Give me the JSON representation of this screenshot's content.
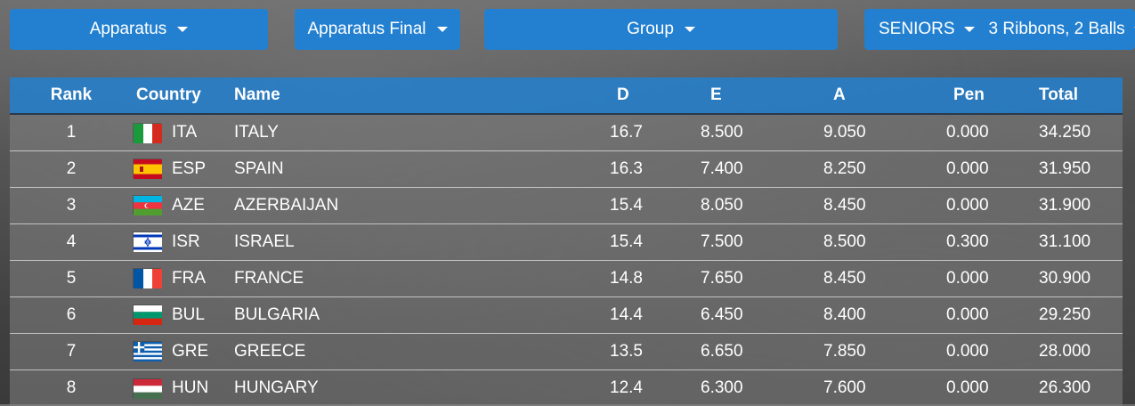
{
  "filters": {
    "apparatus": "Apparatus",
    "apparatus_final": "Apparatus Final",
    "group": "Group",
    "seniors": "SENIORS",
    "ribbons_balls": "3 Ribbons, 2 Balls"
  },
  "table": {
    "headers": {
      "rank": "Rank",
      "country": "Country",
      "name": "Name",
      "d": "D",
      "e": "E",
      "a": "A",
      "pen": "Pen",
      "total": "Total"
    },
    "rows": [
      {
        "rank": "1",
        "code": "ITA",
        "name": "ITALY",
        "d": "16.7",
        "e": "8.500",
        "a": "9.050",
        "pen": "0.000",
        "total": "34.250",
        "flag": "ita-flag-icon"
      },
      {
        "rank": "2",
        "code": "ESP",
        "name": "SPAIN",
        "d": "16.3",
        "e": "7.400",
        "a": "8.250",
        "pen": "0.000",
        "total": "31.950",
        "flag": "esp-flag-icon"
      },
      {
        "rank": "3",
        "code": "AZE",
        "name": "AZERBAIJAN",
        "d": "15.4",
        "e": "8.050",
        "a": "8.450",
        "pen": "0.000",
        "total": "31.900",
        "flag": "aze-flag-icon"
      },
      {
        "rank": "4",
        "code": "ISR",
        "name": "ISRAEL",
        "d": "15.4",
        "e": "7.500",
        "a": "8.500",
        "pen": "0.300",
        "total": "31.100",
        "flag": "isr-flag-icon"
      },
      {
        "rank": "5",
        "code": "FRA",
        "name": "FRANCE",
        "d": "14.8",
        "e": "7.650",
        "a": "8.450",
        "pen": "0.000",
        "total": "30.900",
        "flag": "fra-flag-icon"
      },
      {
        "rank": "6",
        "code": "BUL",
        "name": "BULGARIA",
        "d": "14.4",
        "e": "6.450",
        "a": "8.400",
        "pen": "0.000",
        "total": "29.250",
        "flag": "bul-flag-icon"
      },
      {
        "rank": "7",
        "code": "GRE",
        "name": "GREECE",
        "d": "13.5",
        "e": "6.650",
        "a": "7.850",
        "pen": "0.000",
        "total": "28.000",
        "flag": "gre-flag-icon"
      },
      {
        "rank": "8",
        "code": "HUN",
        "name": "HUNGARY",
        "d": "12.4",
        "e": "6.300",
        "a": "7.600",
        "pen": "0.000",
        "total": "26.300",
        "flag": "hun-flag-icon"
      }
    ]
  },
  "colors": {
    "accent": "#2380d0"
  }
}
